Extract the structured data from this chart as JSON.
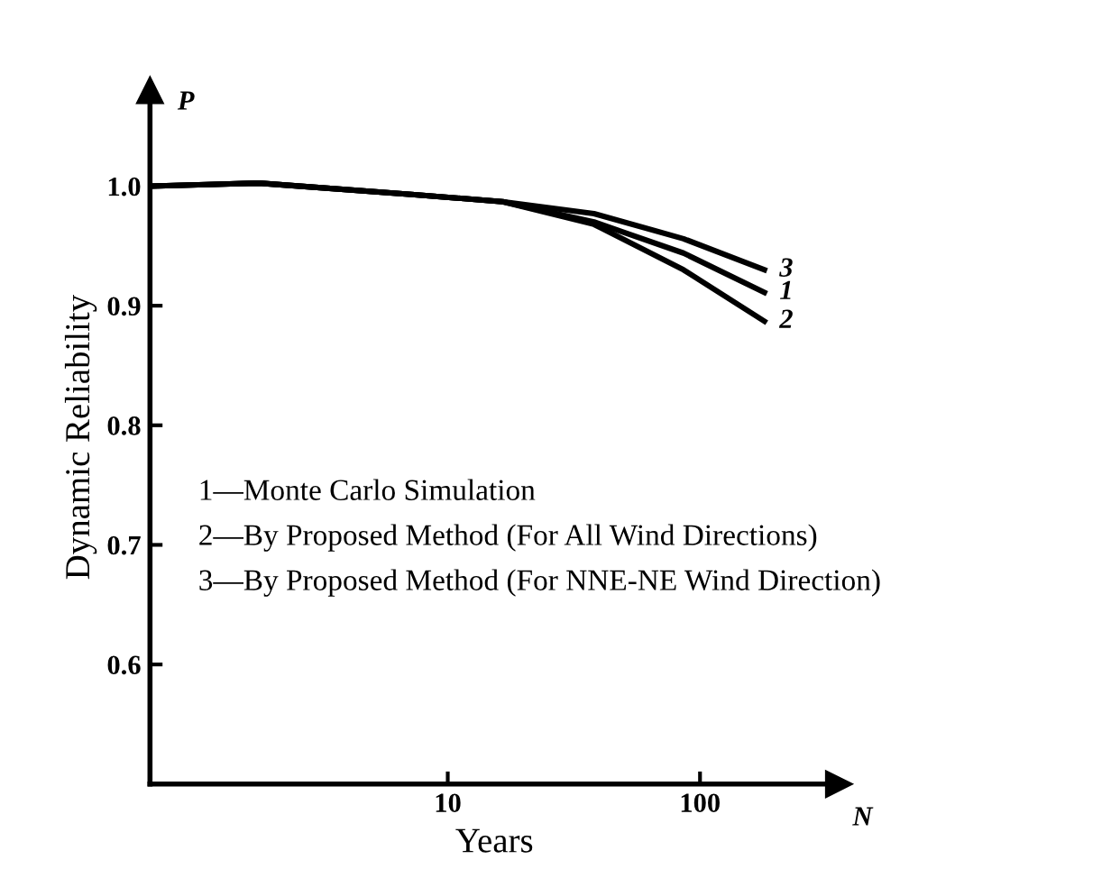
{
  "chart_data": {
    "type": "line",
    "xlabel": "Years",
    "ylabel": "Dynamic Reliability",
    "log": "x",
    "xlim": [
      0.66,
      355
    ],
    "xticks": [
      10,
      100
    ],
    "ylim": [
      0.5,
      1.08
    ],
    "yticks": [
      0.6,
      0.7,
      0.8,
      0.9,
      {
        "value": 1,
        "label": "1.0"
      }
    ],
    "x": [
      0.66,
      1.78,
      7.2,
      16.5,
      38,
      86,
      180
    ],
    "series": [
      {
        "name": "1",
        "color": "#000000",
        "values": [
          1.0,
          1.0025,
          0.993,
          0.987,
          0.97,
          0.944,
          0.911
        ]
      },
      {
        "name": "2",
        "color": "#000000",
        "values": [
          1.0,
          1.0025,
          0.993,
          0.987,
          0.968,
          0.93,
          0.887
        ]
      },
      {
        "name": "3",
        "color": "#000000",
        "values": [
          1.0,
          1.0025,
          0.993,
          0.987,
          0.977,
          0.956,
          0.93
        ]
      }
    ],
    "annotations": [
      "P",
      "N",
      "1—Monte Carlo Simulation",
      "2—By Proposed Method (For All Wind Directions)",
      "3—By Proposed Method (For NNE-NE Wind Direction)"
    ],
    "grid": false,
    "legend": false,
    "marker": "none",
    "line_style": "solid"
  }
}
